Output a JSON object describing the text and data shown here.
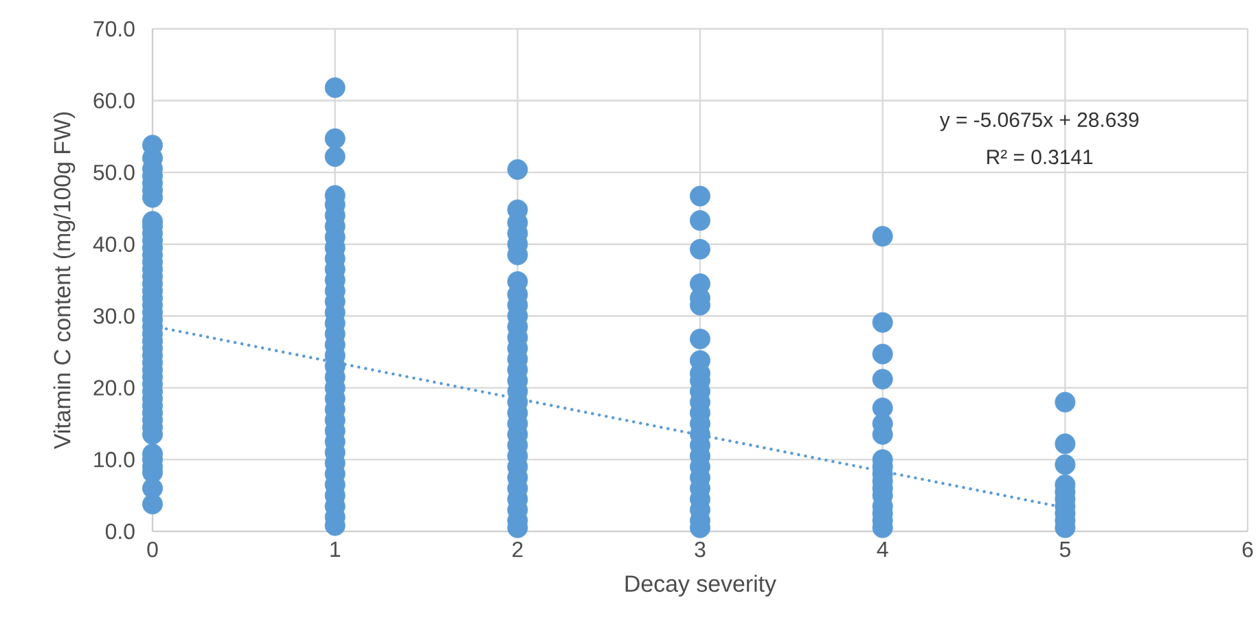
{
  "chart_data": {
    "type": "scatter",
    "xlabel": "Decay severity",
    "ylabel": "Vitamin C content (mg/100g FW)",
    "annotations": [
      "y = -5.0675x + 28.639",
      "R² = 0.3141"
    ],
    "xlim": [
      0,
      6
    ],
    "xticks": [
      0,
      1,
      2,
      3,
      4,
      5,
      6
    ],
    "ylim": [
      0,
      70
    ],
    "yticks": [
      {
        "value": 0,
        "label": "0.0"
      },
      {
        "value": 10,
        "label": "10.0"
      },
      {
        "value": 20,
        "label": "20.0"
      },
      {
        "value": 30,
        "label": "30.0"
      },
      {
        "value": 40,
        "label": "40.0"
      },
      {
        "value": 50,
        "label": "50.0"
      },
      {
        "value": 60,
        "label": "60.0"
      },
      {
        "value": 70,
        "label": "70.0"
      }
    ],
    "grid": true,
    "series": [
      {
        "color": "#5b9bd5",
        "marker": "circle",
        "x": [
          0,
          0,
          0,
          0,
          0,
          0,
          0,
          0,
          0,
          0,
          0,
          0,
          0,
          0,
          0,
          0,
          0,
          0,
          0,
          0,
          0,
          0,
          0,
          0,
          0,
          0,
          0,
          0,
          0,
          0,
          0,
          0,
          0,
          0,
          0,
          0,
          0,
          0,
          0,
          0,
          0,
          0,
          0,
          0,
          1,
          1,
          1,
          1,
          1,
          1,
          1,
          1,
          1,
          1,
          1,
          1,
          1,
          1,
          1,
          1,
          1,
          1,
          1,
          1,
          1,
          1,
          1,
          1,
          1,
          1,
          1,
          1,
          1,
          1,
          1,
          1,
          1,
          1,
          1,
          2,
          2,
          2,
          2,
          2,
          2,
          2,
          2,
          2,
          2,
          2,
          2,
          2,
          2,
          2,
          2,
          2,
          2,
          2,
          2,
          2,
          2,
          2,
          2,
          2,
          2,
          2,
          2,
          2,
          2,
          3,
          3,
          3,
          3,
          3,
          3,
          3,
          3,
          3,
          3,
          3,
          3,
          3,
          3,
          3,
          3,
          3,
          3,
          3,
          3,
          3,
          3,
          3,
          3,
          4,
          4,
          4,
          4,
          4,
          4,
          4,
          4,
          4,
          4,
          4,
          4,
          4,
          4,
          4,
          4,
          4,
          5,
          5,
          5,
          5,
          5,
          5,
          5,
          5,
          5,
          5
        ],
        "values": [
          3.8,
          6,
          8.2,
          9,
          10,
          10.8,
          13.5,
          14.5,
          15.5,
          16.5,
          17.5,
          18.5,
          19.5,
          20.5,
          21.5,
          22.5,
          23.5,
          24.5,
          25.5,
          26.5,
          27.5,
          28.5,
          29.5,
          30.5,
          31.5,
          32.5,
          33.5,
          34.5,
          35.5,
          36.5,
          37.5,
          38.5,
          39.5,
          40.5,
          41.5,
          42.5,
          43.2,
          46.5,
          47.5,
          48.5,
          49.5,
          50.5,
          52,
          53.8,
          0.8,
          2,
          3.5,
          5,
          6.5,
          8,
          9.5,
          11,
          12.5,
          14,
          15.5,
          17,
          18.5,
          20,
          21.5,
          23,
          24.5,
          26,
          27.5,
          29,
          30.5,
          32,
          33.5,
          35,
          36.5,
          38,
          39.5,
          41,
          42.5,
          44,
          45.5,
          46.8,
          52.2,
          54.7,
          61.8,
          0.5,
          1.5,
          3,
          4.5,
          6,
          7.5,
          9,
          10.5,
          12,
          13.5,
          15,
          16.5,
          18,
          19.5,
          21,
          22.5,
          24,
          25.5,
          27,
          28.5,
          30,
          31.5,
          33,
          34.8,
          38.5,
          40,
          41.5,
          43,
          44.8,
          50.4,
          0.5,
          1.5,
          3,
          4.5,
          6,
          7.5,
          9,
          10.5,
          12,
          13.5,
          15,
          16.5,
          18,
          19.5,
          21,
          22,
          23.8,
          26.8,
          31.5,
          32.5,
          34.5,
          39.3,
          43.3,
          46.7,
          0.5,
          1.5,
          2.5,
          3.5,
          5,
          6,
          7,
          8,
          9,
          10,
          13.5,
          15,
          17.2,
          21.2,
          24.7,
          29.1,
          41.1,
          0.5,
          1.5,
          2.5,
          3.5,
          4.5,
          5.5,
          6.5,
          9.3,
          12.2,
          18
        ]
      },
      {
        "type": "line",
        "color": "#5b9bd5",
        "marker": "none",
        "line_style": "dotted",
        "x": [
          0,
          5
        ],
        "values": [
          28.6,
          3.3
        ]
      }
    ]
  }
}
